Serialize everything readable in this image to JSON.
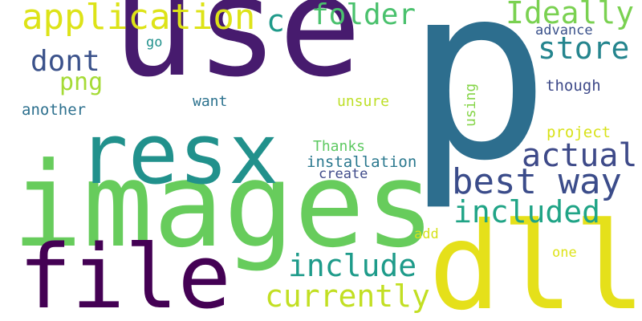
{
  "words": [
    {
      "key": "use",
      "text": "use",
      "color": "#471b6e"
    },
    {
      "key": "p",
      "text": "p",
      "color": "#2d6e8e"
    },
    {
      "key": "images",
      "text": "images",
      "color": "#67cc5c"
    },
    {
      "key": "dll",
      "text": "dll",
      "color": "#e5e01a"
    },
    {
      "key": "resx",
      "text": "resx",
      "color": "#21918c"
    },
    {
      "key": "file",
      "text": "file",
      "color": "#440154"
    },
    {
      "key": "bestway",
      "text": "best way",
      "color": "#3b4c8a"
    },
    {
      "key": "application",
      "text": "application",
      "color": "#dde318"
    },
    {
      "key": "actual",
      "text": "actual",
      "color": "#3e4a89"
    },
    {
      "key": "included",
      "text": "included",
      "color": "#20a486"
    },
    {
      "key": "include",
      "text": "include",
      "color": "#1e9b8a"
    },
    {
      "key": "currently",
      "text": "currently",
      "color": "#c2df23"
    },
    {
      "key": "folder",
      "text": "folder",
      "color": "#4ac16d"
    },
    {
      "key": "ideally",
      "text": "Ideally",
      "color": "#7ad151"
    },
    {
      "key": "store",
      "text": "store",
      "color": "#25858e"
    },
    {
      "key": "dont",
      "text": "dont",
      "color": "#3b528b"
    },
    {
      "key": "c",
      "text": "c",
      "color": "#1f9a8a"
    },
    {
      "key": "png",
      "text": "png",
      "color": "#a5db36"
    },
    {
      "key": "advance",
      "text": "advance",
      "color": "#3b528b"
    },
    {
      "key": "go",
      "text": "go",
      "color": "#21918c"
    },
    {
      "key": "though",
      "text": "though",
      "color": "#3e4a89"
    },
    {
      "key": "want",
      "text": "want",
      "color": "#2c728e"
    },
    {
      "key": "unsure",
      "text": "unsure",
      "color": "#bddf26"
    },
    {
      "key": "another",
      "text": "another",
      "color": "#2d708e"
    },
    {
      "key": "project",
      "text": "project",
      "color": "#d8e219"
    },
    {
      "key": "thanks",
      "text": "Thanks",
      "color": "#5ec962"
    },
    {
      "key": "installation",
      "text": "installation",
      "color": "#2a788e"
    },
    {
      "key": "create",
      "text": "create",
      "color": "#3e4a89"
    },
    {
      "key": "add",
      "text": "add",
      "color": "#d5e21a"
    },
    {
      "key": "one",
      "text": "one",
      "color": "#dde318"
    },
    {
      "key": "using",
      "text": "using",
      "color": "#86d549",
      "vertical": true
    }
  ]
}
